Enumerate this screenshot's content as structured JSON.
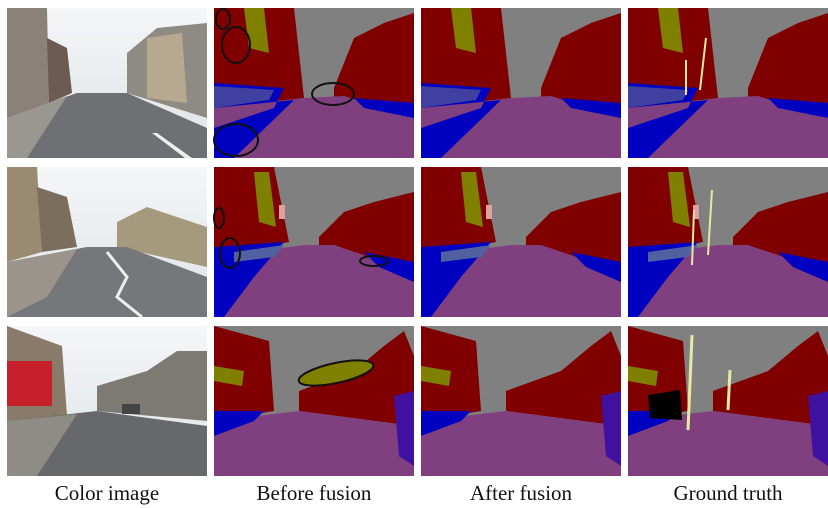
{
  "captions": [
    "Color image",
    "Before fusion",
    "After fusion",
    "Ground truth"
  ]
}
